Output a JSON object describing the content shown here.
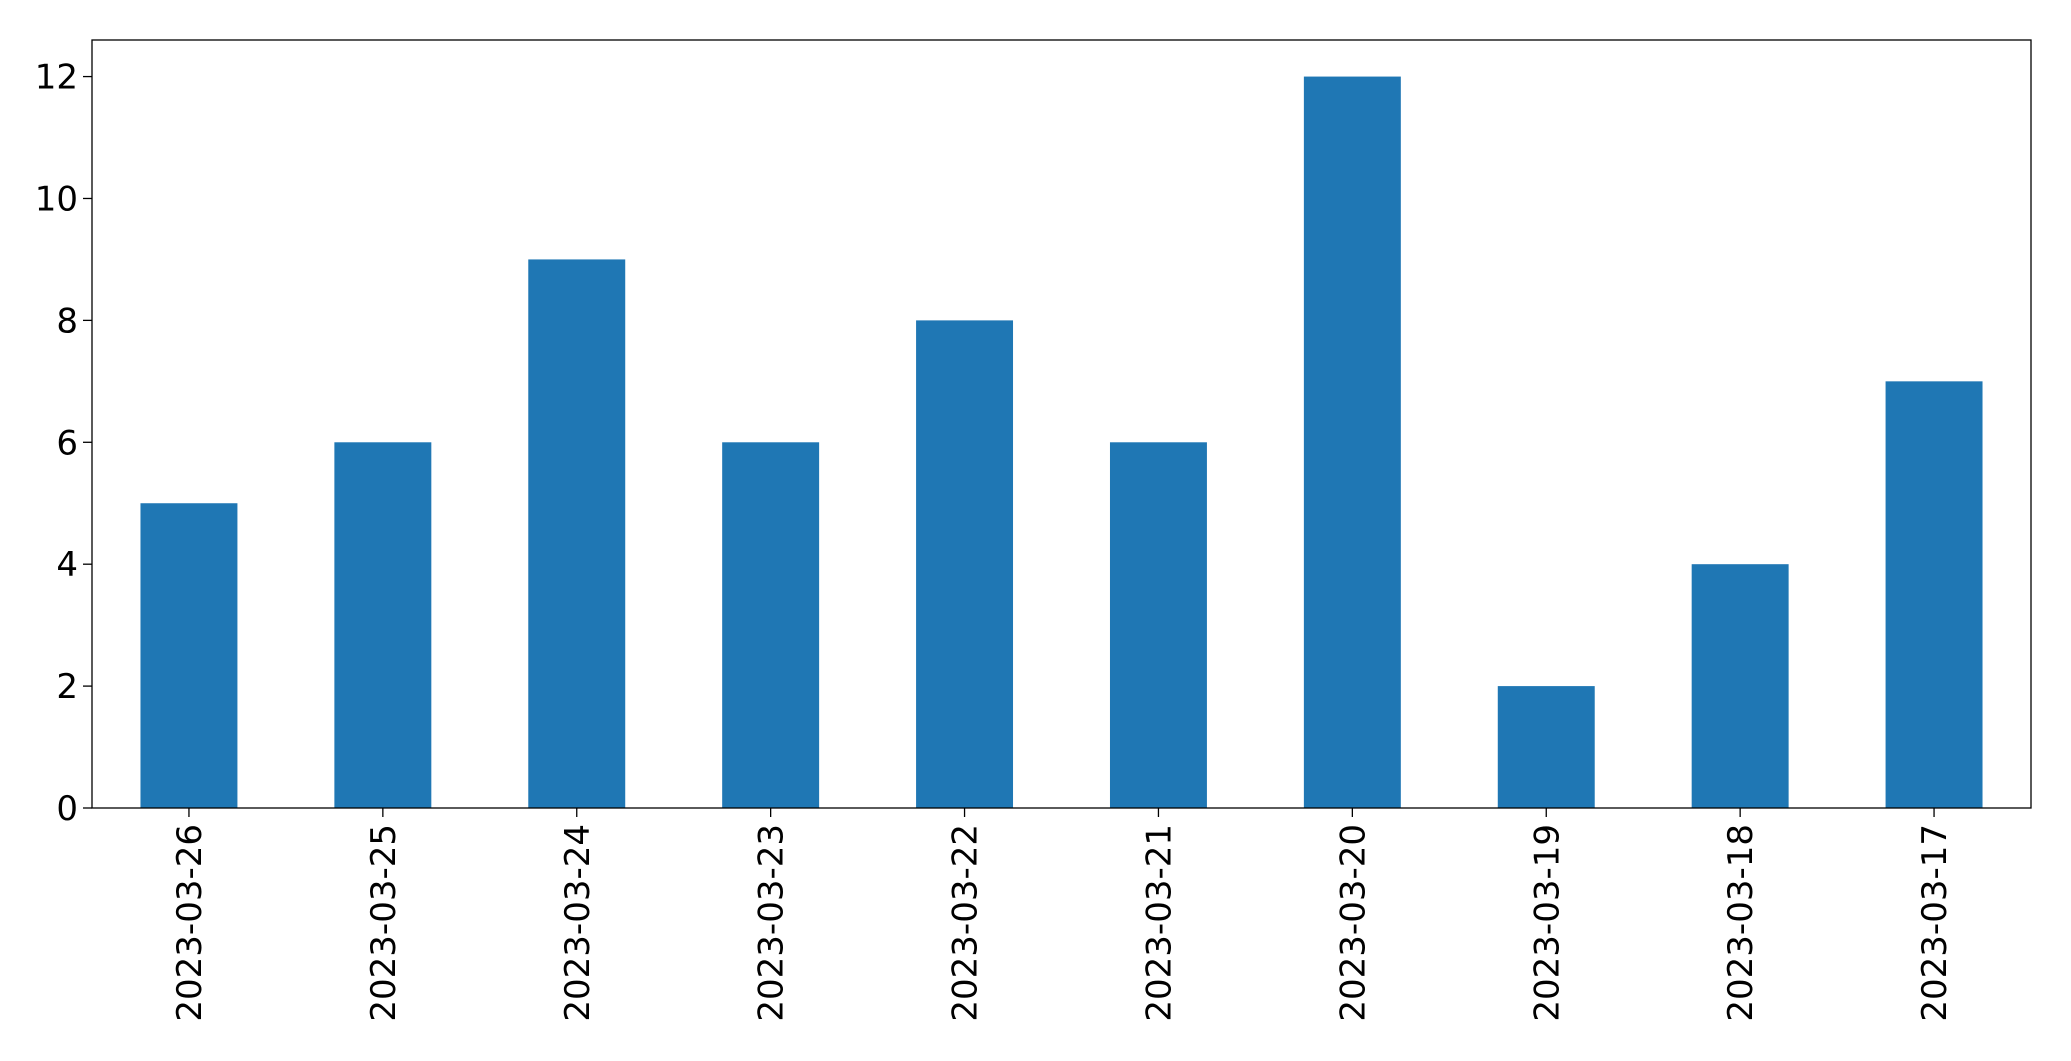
{
  "chart_data": {
    "type": "bar",
    "categories": [
      "2023-03-26",
      "2023-03-25",
      "2023-03-24",
      "2023-03-23",
      "2023-03-22",
      "2023-03-21",
      "2023-03-20",
      "2023-03-19",
      "2023-03-18",
      "2023-03-17"
    ],
    "values": [
      5,
      6,
      9,
      6,
      8,
      6,
      12,
      2,
      4,
      7
    ],
    "color": "#1f77b4",
    "ylim": [
      0,
      12.6
    ],
    "yticks": [
      0,
      2,
      4,
      6,
      8,
      10,
      12
    ],
    "grid": false
  }
}
